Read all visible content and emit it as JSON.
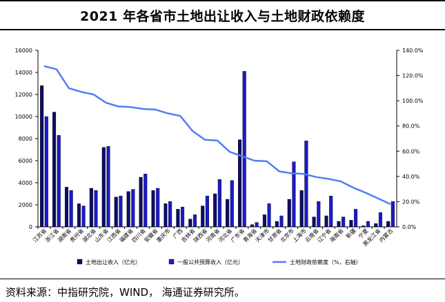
{
  "title": "2021 年各省市土地出让收入与土地财政依赖度",
  "source": "资料来源：中指研究院，WIND， 海通证券研究所。",
  "colors": {
    "land_revenue": "#0d0d66",
    "budget_revenue": "#1a1acc",
    "dependency": "#4f7df5",
    "axis": "#000000"
  },
  "chart_data": {
    "type": "bar",
    "title": "2021 年各省市土地出让收入与土地财政依赖度",
    "categories": [
      "江苏省",
      "浙江省",
      "湖南省",
      "贵州省",
      "湖北省",
      "山东省",
      "江西省",
      "福建省",
      "四川省",
      "安徽省",
      "重庆市",
      "广西",
      "吉林省",
      "陕西省",
      "河南省",
      "河北省",
      "广东省",
      "青海省",
      "天津市",
      "甘肃省",
      "北京市",
      "上海市",
      "云南省",
      "辽宁省",
      "海南省",
      "新疆",
      "宁夏",
      "黑龙江省",
      "内蒙古"
    ],
    "y_ticks": [
      "0",
      "2000",
      "4000",
      "6000",
      "8000",
      "10000",
      "12000",
      "14000",
      "16000"
    ],
    "y2_ticks": [
      "0.0%",
      "20.0%",
      "40.0%",
      "60.0%",
      "80.0%",
      "100.0%",
      "120.0%",
      "140.0%"
    ],
    "ylim": [
      0,
      16000
    ],
    "y2lim": [
      0,
      140
    ],
    "series": [
      {
        "name": "土地出让收入（亿元）",
        "type": "bar",
        "axis": "left",
        "values": [
          12800,
          10400,
          3600,
          2100,
          3500,
          7200,
          2700,
          3200,
          4500,
          3300,
          2100,
          1600,
          700,
          1900,
          3000,
          2500,
          7900,
          200,
          1100,
          500,
          2500,
          3300,
          900,
          1000,
          500,
          600,
          100,
          300,
          500
        ]
      },
      {
        "name": "一般公共预算收入（亿元）",
        "type": "bar",
        "axis": "left",
        "values": [
          10000,
          8300,
          3300,
          1900,
          3300,
          7300,
          2800,
          3400,
          4800,
          3500,
          2300,
          1800,
          1100,
          2800,
          4300,
          4200,
          14100,
          400,
          2100,
          1000,
          5900,
          7800,
          2300,
          2800,
          900,
          1600,
          500,
          1300,
          2300
        ]
      },
      {
        "name": "土地财政依赖度（%，右轴）",
        "type": "line",
        "axis": "right",
        "values": [
          127.5,
          125,
          110,
          107,
          105,
          98.5,
          95.5,
          95,
          93.5,
          93,
          90,
          88,
          76,
          69,
          68.5,
          59.5,
          56,
          52.5,
          52,
          44,
          42.5,
          42,
          39.5,
          38,
          36,
          31,
          27,
          22.5,
          18
        ]
      }
    ],
    "legend_position": "bottom",
    "grid": false
  }
}
